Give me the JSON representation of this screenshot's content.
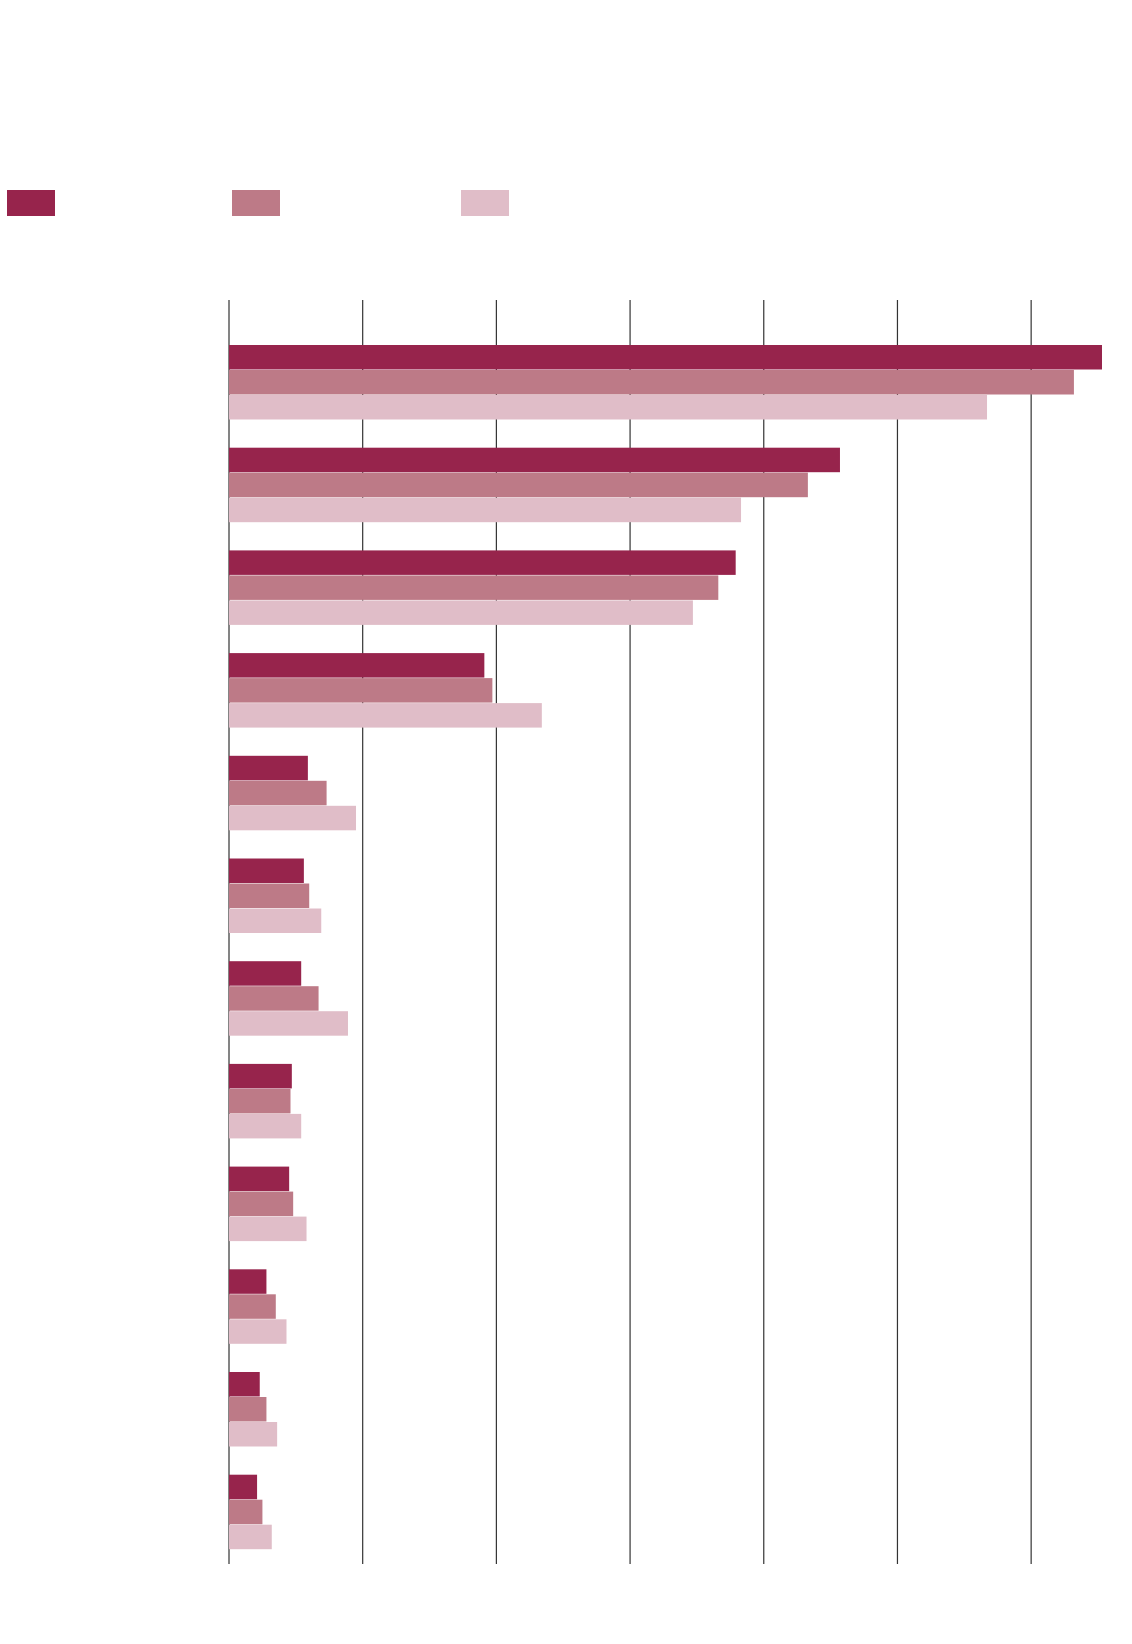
{
  "chart_data": {
    "type": "bar",
    "orientation": "horizontal",
    "categories": [
      "",
      "",
      "",
      "",
      "",
      "",
      "",
      "",
      "",
      "",
      "",
      ""
    ],
    "series": [
      {
        "values": [
          65.3,
          45.7,
          37.9,
          19.1,
          5.9,
          5.6,
          5.4,
          4.7,
          4.5,
          2.8,
          2.3,
          2.1
        ],
        "color": "#97244c"
      },
      {
        "values": [
          63.2,
          43.3,
          36.6,
          19.7,
          7.3,
          6.0,
          6.7,
          4.6,
          4.8,
          3.5,
          2.8,
          2.5
        ],
        "color": "#bd7a87"
      },
      {
        "values": [
          56.7,
          38.3,
          34.7,
          23.4,
          9.5,
          6.9,
          8.9,
          5.4,
          5.8,
          4.3,
          3.6,
          3.2
        ],
        "color": "#e0bdc8"
      }
    ],
    "xlim": [
      0,
      65.3
    ],
    "gridlines": [
      0,
      10,
      20,
      30,
      40,
      50,
      60
    ],
    "grid": true,
    "legend": "top-left",
    "title": "",
    "xlabel": "",
    "ylabel": ""
  }
}
